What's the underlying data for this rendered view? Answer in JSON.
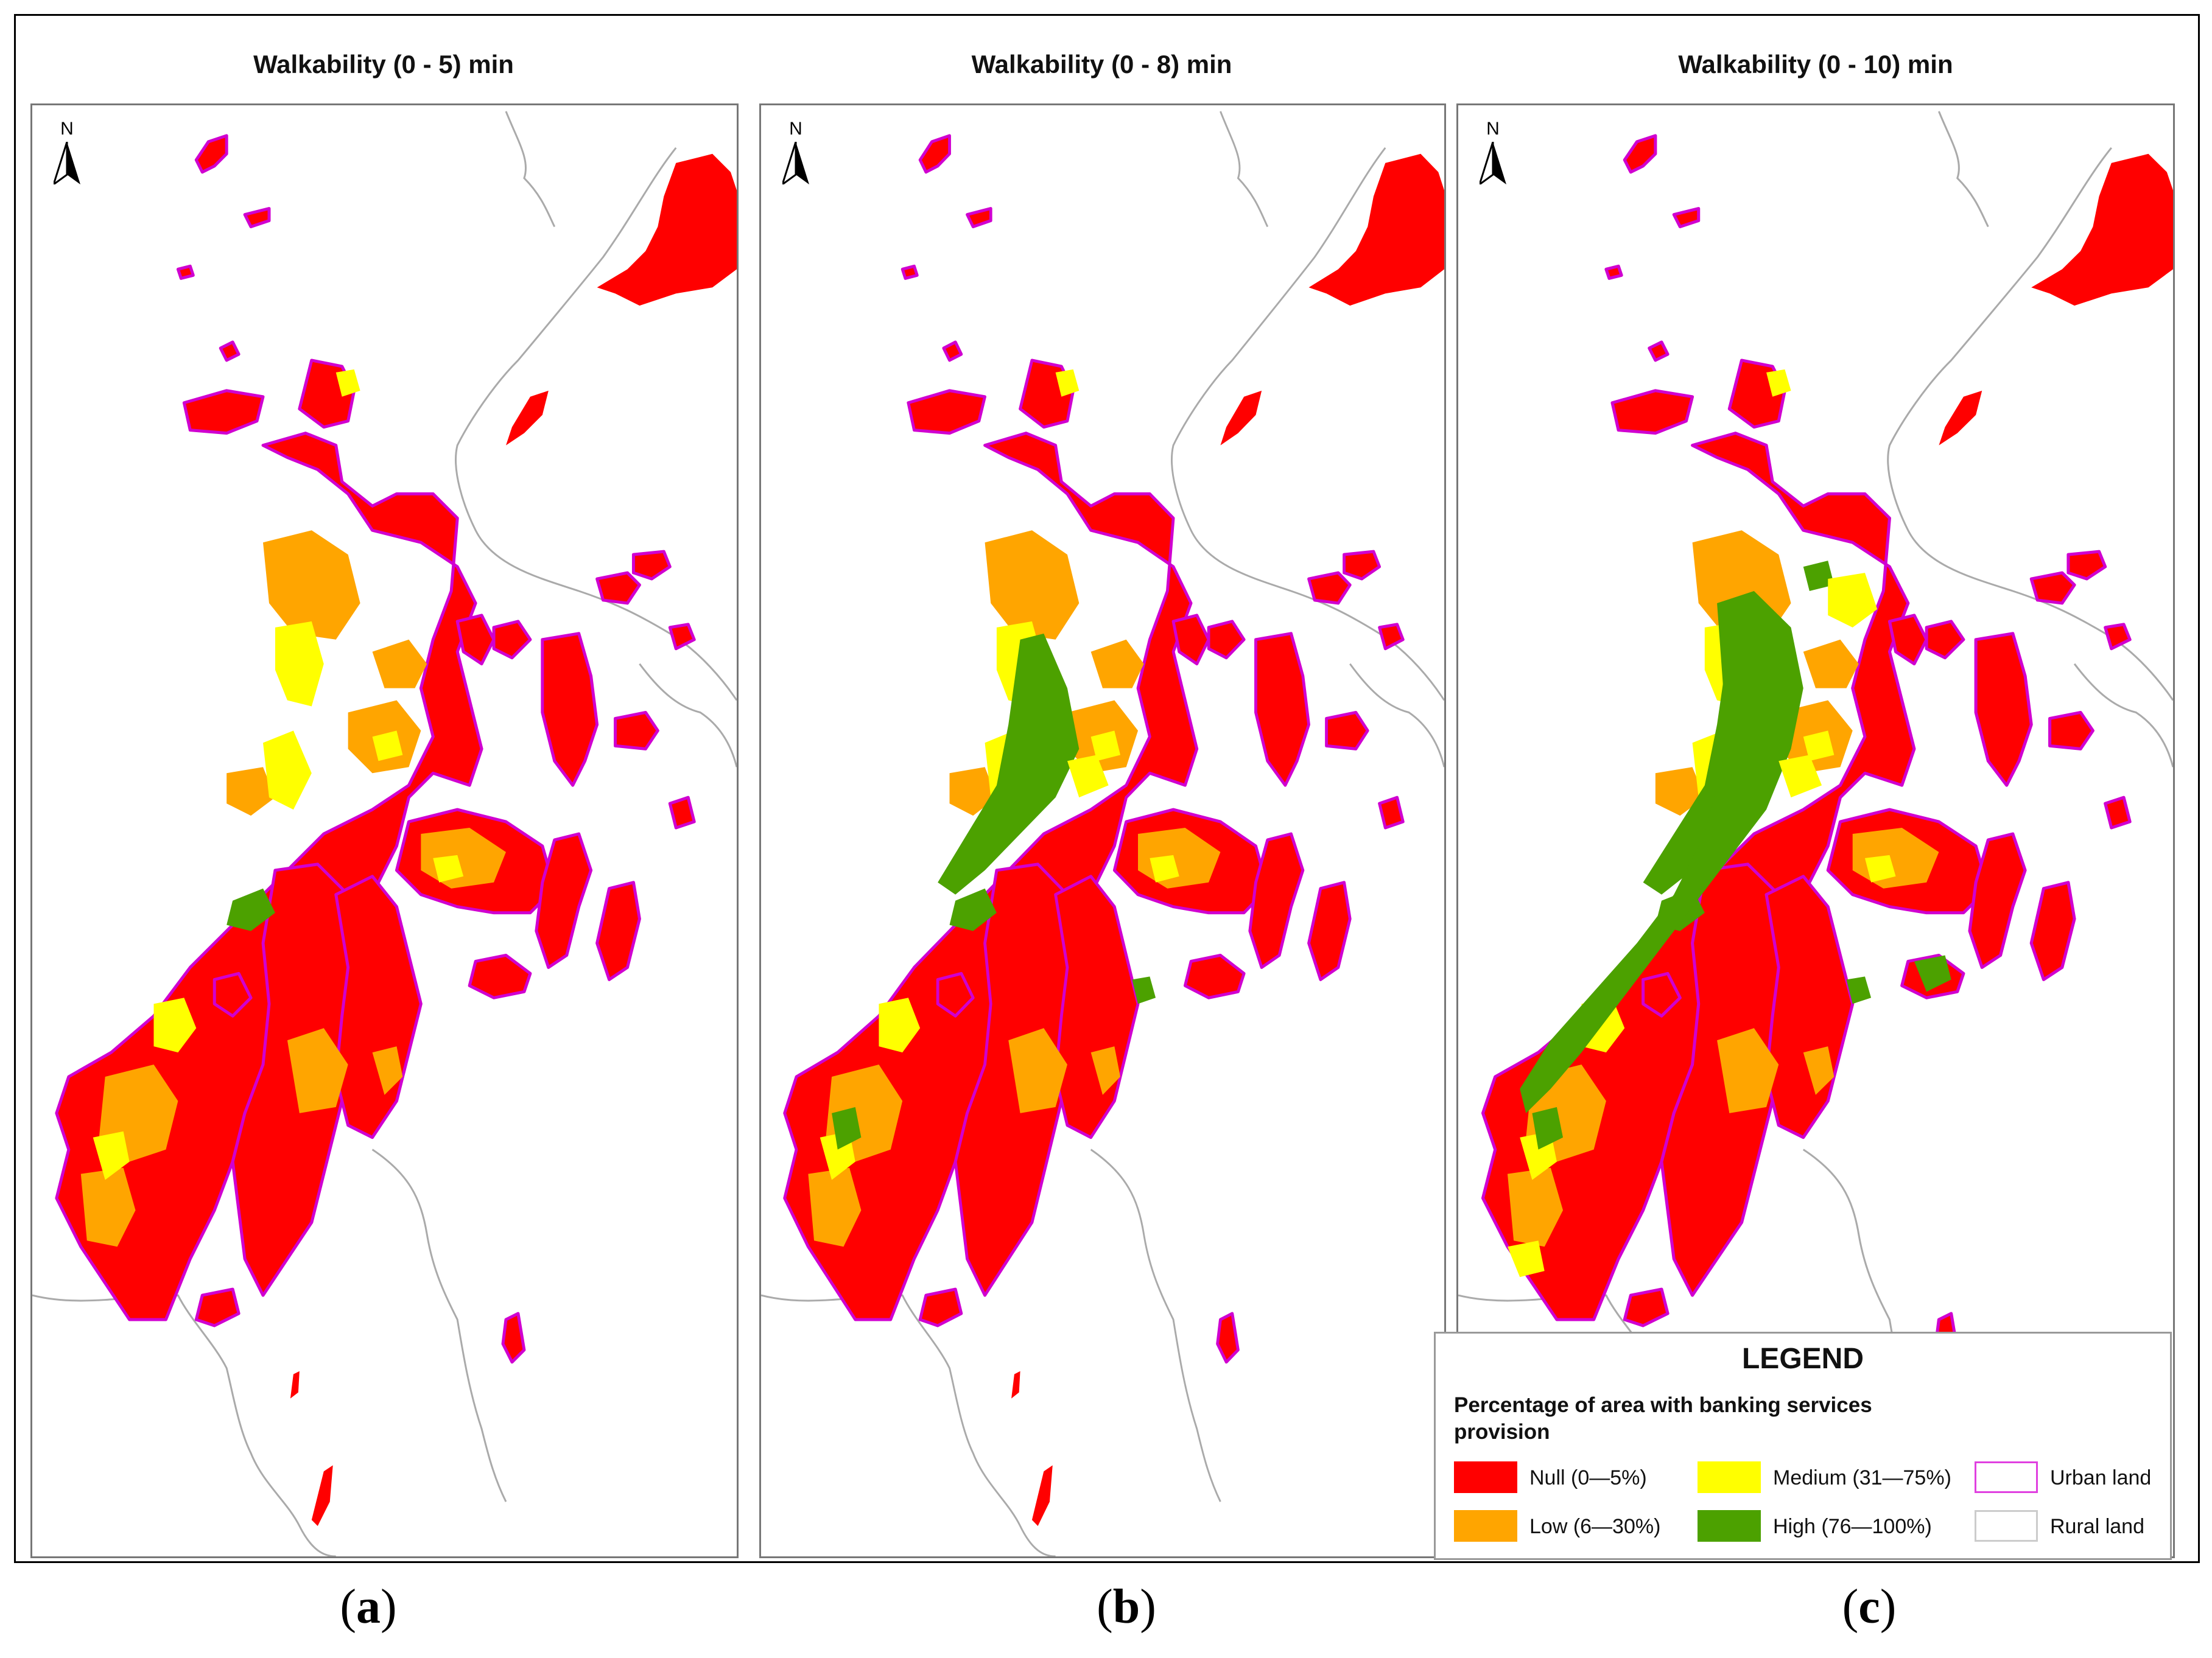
{
  "panels": [
    {
      "id": "a",
      "title": "Walkability (0 - 5) min",
      "caption": "a",
      "green_level": 1
    },
    {
      "id": "b",
      "title": "Walkability (0 - 8) min",
      "caption": "b",
      "green_level": 2
    },
    {
      "id": "c",
      "title": "Walkability (0 - 10) min",
      "caption": "c",
      "green_level": 3
    }
  ],
  "north_label": "N",
  "legend": {
    "title": "LEGEND",
    "subtitle": "Percentage of area with banking services provision",
    "items": [
      {
        "label": "Null (0—5%)",
        "color": "#ff0000"
      },
      {
        "label": "Low (6—30%)",
        "color": "#ffa500"
      },
      {
        "label": "Medium (31—75%)",
        "color": "#ffff00"
      },
      {
        "label": "High (76—100%)",
        "color": "#4ca100"
      },
      {
        "label": "Urban land",
        "color": "#e040e0"
      },
      {
        "label": "Rural land",
        "color": "#cccccc"
      }
    ]
  },
  "colors": {
    "null": "#ff0000",
    "low": "#ffa500",
    "medium": "#ffff00",
    "high": "#4ca100",
    "urban_outline": "#d000d0",
    "rural_outline": "#aaaaaa"
  }
}
